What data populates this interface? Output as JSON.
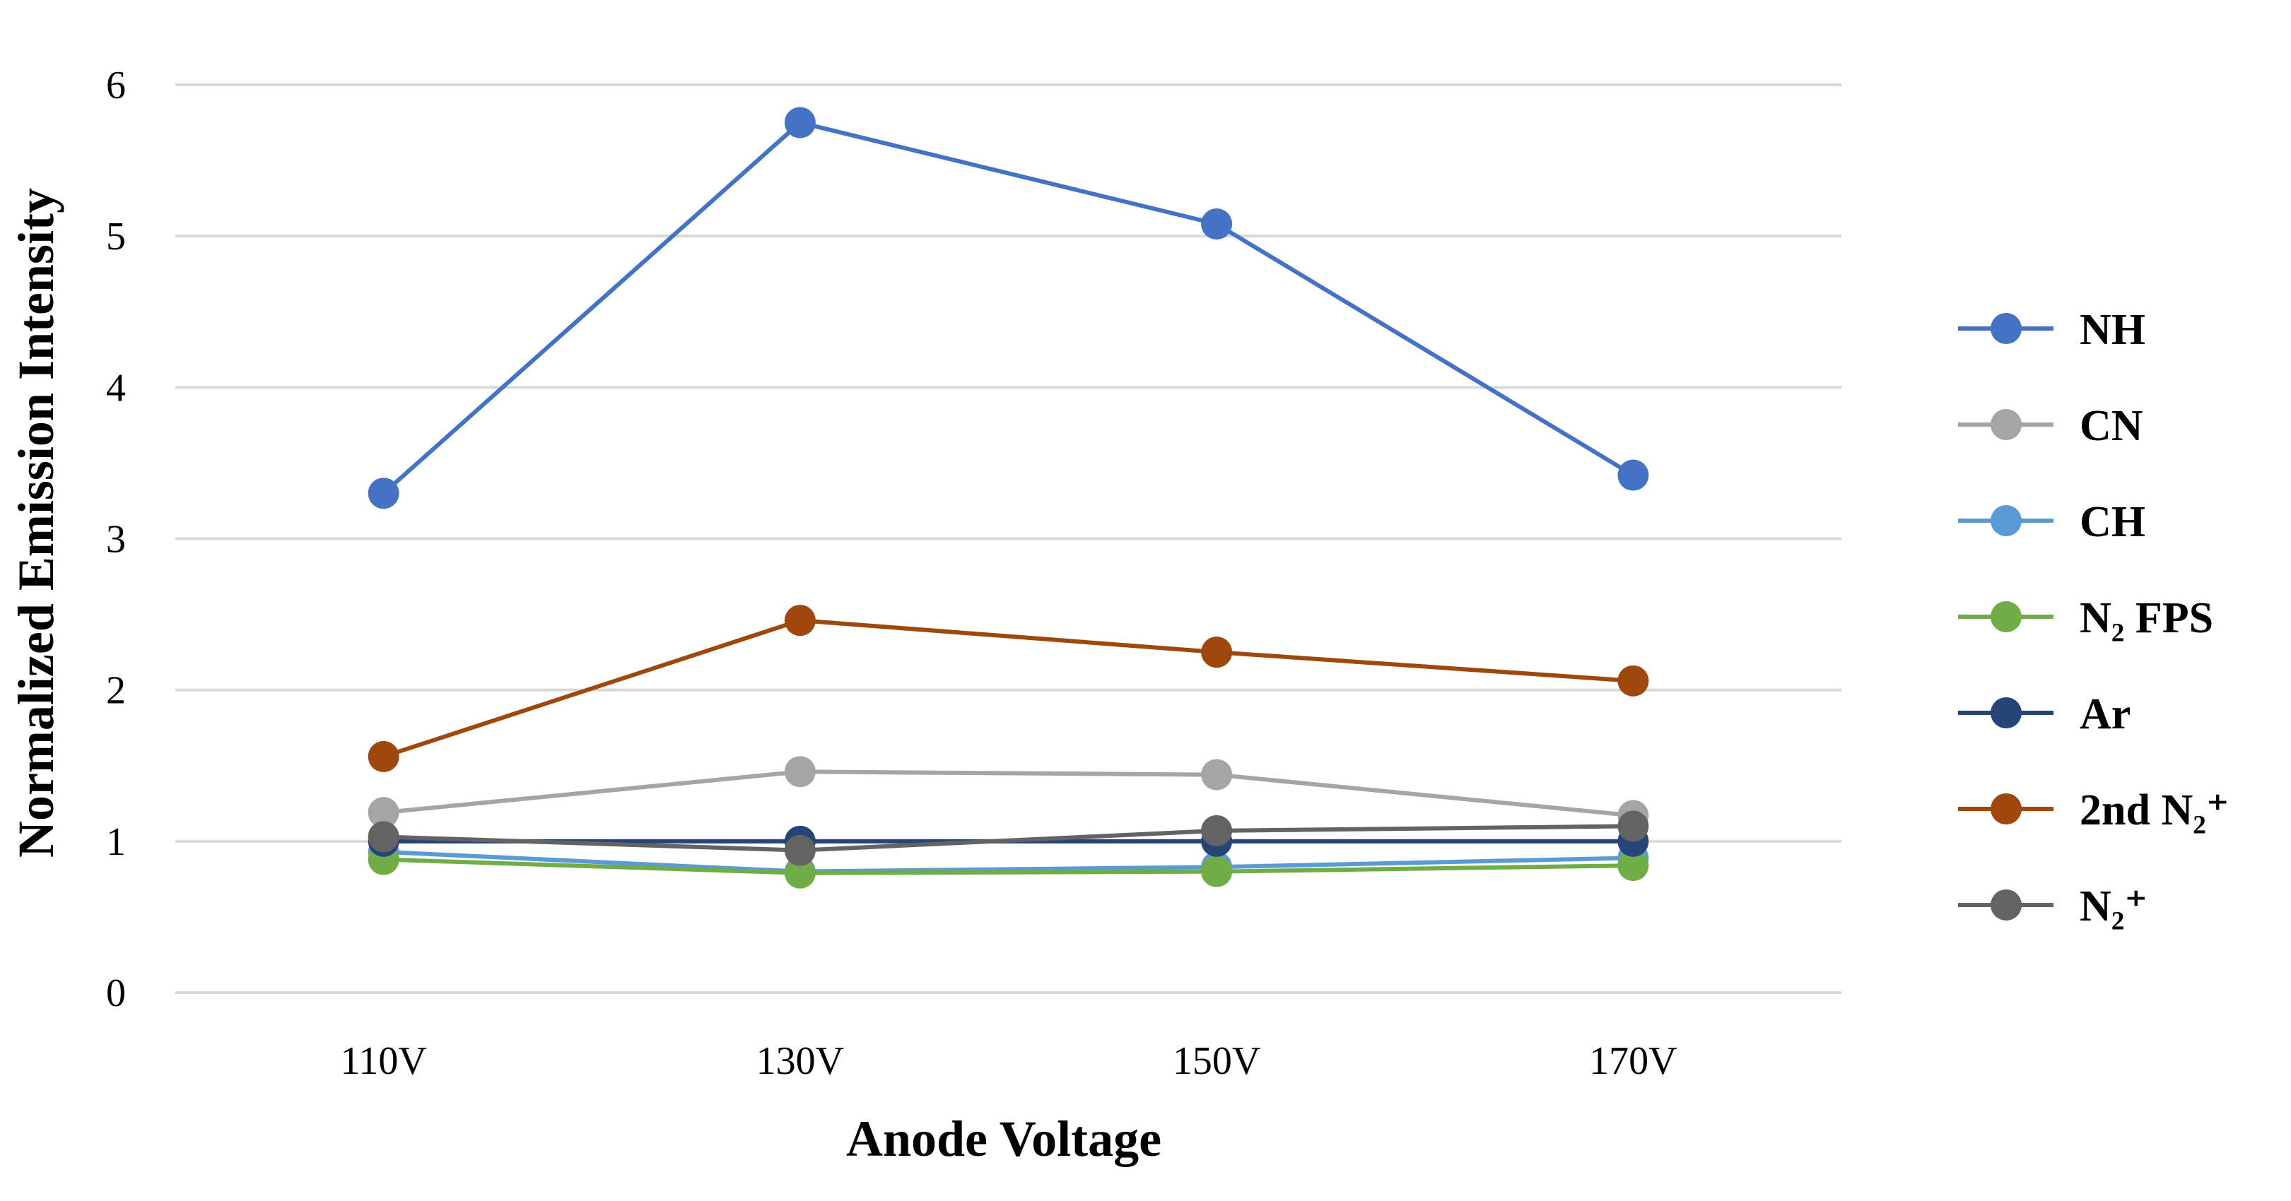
{
  "chart_data": {
    "type": "line",
    "title": "",
    "xlabel": "Anode Voltage",
    "ylabel": "Normalized Emission Intensity",
    "categories": [
      "110V",
      "130V",
      "150V",
      "170V"
    ],
    "ylim": [
      0,
      6
    ],
    "yticks": [
      "0",
      "1",
      "2",
      "3",
      "4",
      "5",
      "6"
    ],
    "grid": true,
    "legend_position": "right",
    "series": [
      {
        "name": "NH",
        "values": [
          3.3,
          5.75,
          5.08,
          3.42
        ],
        "color": "#4472C4"
      },
      {
        "name": "CN",
        "values": [
          1.19,
          1.46,
          1.44,
          1.17
        ],
        "color": "#A5A5A5"
      },
      {
        "name": "CH",
        "values": [
          0.93,
          0.8,
          0.83,
          0.89
        ],
        "color": "#5B9BD5"
      },
      {
        "name": "N₂ FPS",
        "values": [
          0.88,
          0.79,
          0.8,
          0.84
        ],
        "color": "#70AD47"
      },
      {
        "name": "Ar",
        "values": [
          1.0,
          1.0,
          1.0,
          1.0
        ],
        "color": "#264478"
      },
      {
        "name": "2nd N₂⁺",
        "values": [
          1.56,
          2.46,
          2.25,
          2.06
        ],
        "color": "#9E480E"
      },
      {
        "name": "N₂⁺",
        "values": [
          1.03,
          0.94,
          1.07,
          1.1
        ],
        "color": "#636363"
      }
    ]
  }
}
